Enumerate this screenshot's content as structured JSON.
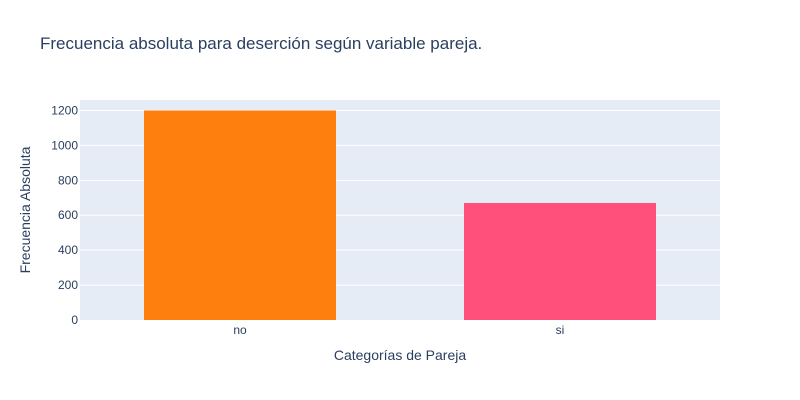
{
  "chart_data": {
    "type": "bar",
    "title": "Frecuencia absoluta para deserción según variable pareja.",
    "xlabel": "Categorías de Pareja",
    "ylabel": "Frecuencia Absoluta",
    "categories": [
      "no",
      "si"
    ],
    "values": [
      1200,
      670
    ],
    "colors": [
      "#ff7f0e",
      "#ff4f7b"
    ],
    "ylim": [
      0,
      1260
    ],
    "yticks": [
      0,
      200,
      400,
      600,
      800,
      1000,
      1200
    ],
    "grid": true,
    "plot_bg": "#e5ecf6"
  }
}
